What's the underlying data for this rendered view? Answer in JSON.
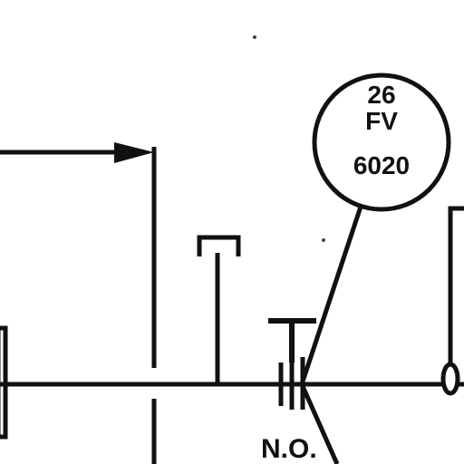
{
  "instrument_tag": {
    "number": "26",
    "function": "FV",
    "loop": "6020"
  },
  "valve_position_label": "N.O.",
  "colors": {
    "line": "#111111",
    "background": "#ffffff"
  }
}
